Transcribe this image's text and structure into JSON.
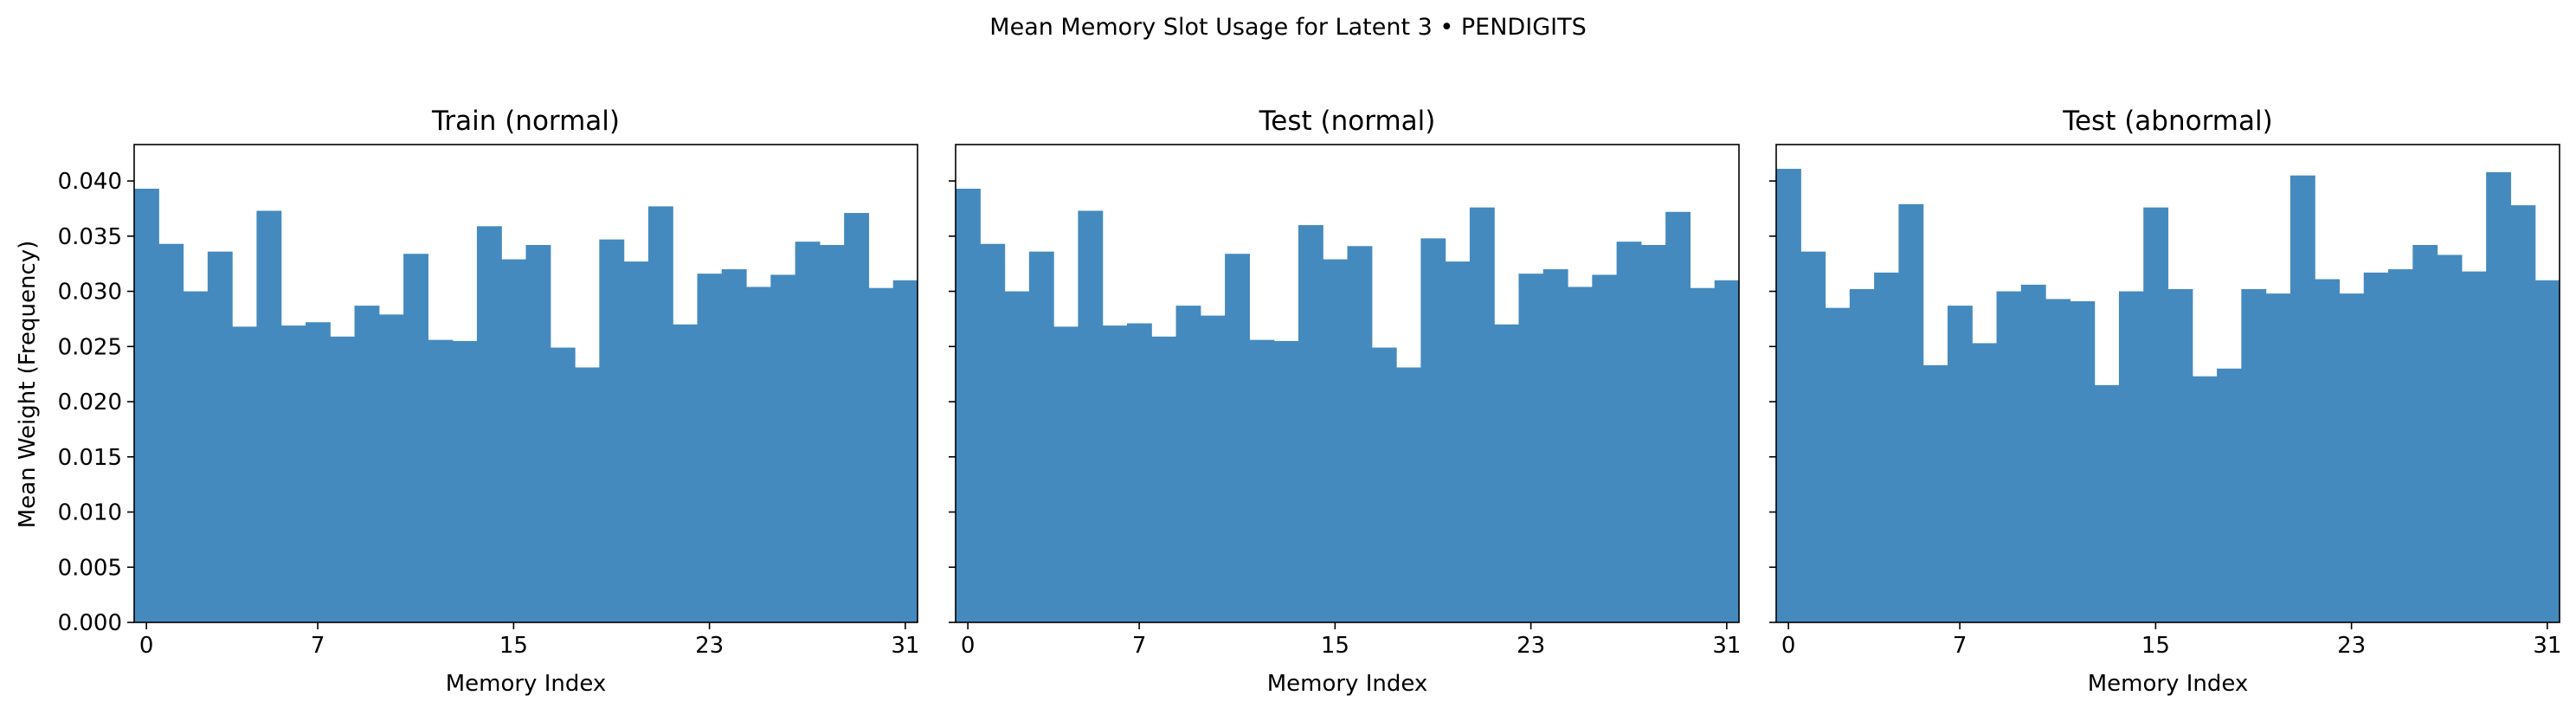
{
  "figure": {
    "suptitle": "Mean Memory Slot Usage for Latent 3 • PENDIGITS",
    "shared_ylabel": "Mean Weight (Frequency)",
    "shared_xlabel": "Memory Index",
    "bar_color": "#4389bd"
  },
  "chart_data": [
    {
      "type": "bar",
      "title": "Train (normal)",
      "xlabel": "Memory Index",
      "ylabel": "Mean Weight (Frequency)",
      "xticks": [
        0,
        7,
        15,
        23,
        31
      ],
      "yticks": [
        "0.000",
        "0.005",
        "0.010",
        "0.015",
        "0.020",
        "0.025",
        "0.030",
        "0.035",
        "0.040"
      ],
      "ylim": [
        0,
        0.0433
      ],
      "grid": false,
      "categories": [
        0,
        1,
        2,
        3,
        4,
        5,
        6,
        7,
        8,
        9,
        10,
        11,
        12,
        13,
        14,
        15,
        16,
        17,
        18,
        19,
        20,
        21,
        22,
        23,
        24,
        25,
        26,
        27,
        28,
        29,
        30,
        31
      ],
      "values": [
        0.0393,
        0.0343,
        0.03,
        0.0336,
        0.0268,
        0.0373,
        0.0269,
        0.0272,
        0.0259,
        0.0287,
        0.0279,
        0.0334,
        0.0256,
        0.0255,
        0.0359,
        0.0329,
        0.0342,
        0.0249,
        0.0231,
        0.0347,
        0.0327,
        0.0377,
        0.027,
        0.0316,
        0.032,
        0.0304,
        0.0315,
        0.0345,
        0.0342,
        0.0371,
        0.0303,
        0.031
      ]
    },
    {
      "type": "bar",
      "title": "Test (normal)",
      "xlabel": "Memory Index",
      "ylabel": "",
      "xticks": [
        0,
        7,
        15,
        23,
        31
      ],
      "yticks": [
        "0.000",
        "0.005",
        "0.010",
        "0.015",
        "0.020",
        "0.025",
        "0.030",
        "0.035",
        "0.040"
      ],
      "ylim": [
        0,
        0.0433
      ],
      "grid": false,
      "categories": [
        0,
        1,
        2,
        3,
        4,
        5,
        6,
        7,
        8,
        9,
        10,
        11,
        12,
        13,
        14,
        15,
        16,
        17,
        18,
        19,
        20,
        21,
        22,
        23,
        24,
        25,
        26,
        27,
        28,
        29,
        30,
        31
      ],
      "values": [
        0.0393,
        0.0343,
        0.03,
        0.0336,
        0.0268,
        0.0373,
        0.0269,
        0.0271,
        0.0259,
        0.0287,
        0.0278,
        0.0334,
        0.0256,
        0.0255,
        0.036,
        0.0329,
        0.0341,
        0.0249,
        0.0231,
        0.0348,
        0.0327,
        0.0376,
        0.027,
        0.0316,
        0.032,
        0.0304,
        0.0315,
        0.0345,
        0.0342,
        0.0372,
        0.0303,
        0.031
      ]
    },
    {
      "type": "bar",
      "title": "Test (abnormal)",
      "xlabel": "Memory Index",
      "ylabel": "",
      "xticks": [
        0,
        7,
        15,
        23,
        31
      ],
      "yticks": [
        "0.000",
        "0.005",
        "0.010",
        "0.015",
        "0.020",
        "0.025",
        "0.030",
        "0.035",
        "0.040"
      ],
      "ylim": [
        0,
        0.0433
      ],
      "grid": false,
      "categories": [
        0,
        1,
        2,
        3,
        4,
        5,
        6,
        7,
        8,
        9,
        10,
        11,
        12,
        13,
        14,
        15,
        16,
        17,
        18,
        19,
        20,
        21,
        22,
        23,
        24,
        25,
        26,
        27,
        28,
        29,
        30,
        31
      ],
      "values": [
        0.0411,
        0.0336,
        0.0285,
        0.0302,
        0.0317,
        0.0379,
        0.0233,
        0.0287,
        0.0253,
        0.03,
        0.0306,
        0.0293,
        0.0291,
        0.0215,
        0.03,
        0.0376,
        0.0302,
        0.0223,
        0.023,
        0.0302,
        0.0298,
        0.0405,
        0.0311,
        0.0298,
        0.0317,
        0.032,
        0.0342,
        0.0333,
        0.0318,
        0.0408,
        0.0378,
        0.031
      ]
    }
  ]
}
